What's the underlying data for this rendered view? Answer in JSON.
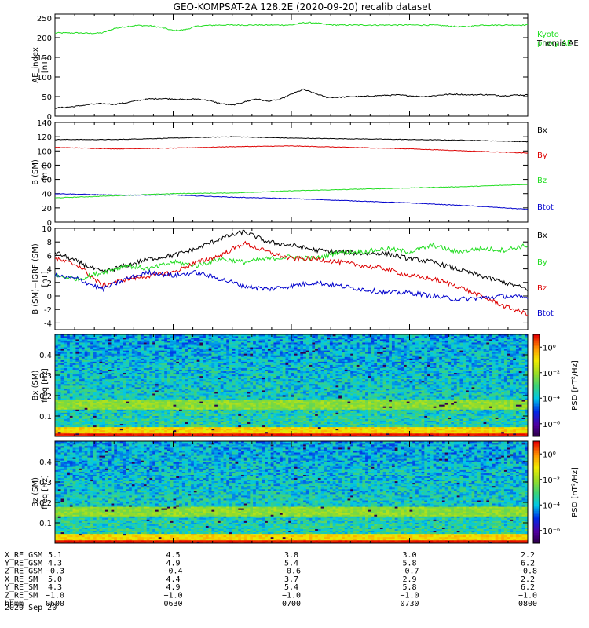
{
  "title": "GEO-KOMPSAT-2A 128.2E (2020-09-20) recalib dataset",
  "colors": {
    "black": "#000000",
    "blue": "#0000cc",
    "green": "#22dd22",
    "red": "#dd0000"
  },
  "chart_data": [
    {
      "type": "line",
      "ylabel": "AE_index\n[nT]",
      "ylim": [
        0,
        260
      ],
      "yticks": [
        "0",
        "50",
        "100",
        "150",
        "200",
        "250"
      ],
      "ytick_values": [
        0,
        50,
        100,
        150,
        200,
        250
      ],
      "x_hours": [
        0,
        0.05,
        0.1,
        0.15,
        0.2,
        0.25,
        0.3,
        0.35,
        0.4,
        0.45,
        0.5,
        0.55,
        0.6,
        0.65,
        0.7,
        0.75,
        0.8,
        0.85,
        0.9,
        0.95,
        1.0,
        1.05,
        1.1,
        1.15,
        1.2,
        1.25,
        1.3,
        1.35,
        1.4,
        1.45,
        1.5,
        1.55,
        1.6,
        1.65,
        1.7,
        1.75,
        1.8,
        1.85,
        1.9,
        1.95,
        2.0
      ],
      "series": [
        {
          "name": "Kyoto\nproxy AE",
          "color": "green",
          "values": [
            212,
            212,
            212,
            211,
            212,
            223,
            228,
            231,
            230,
            226,
            218,
            220,
            229,
            231,
            232,
            232,
            232,
            232,
            232,
            232,
            232,
            238,
            238,
            233,
            232,
            232,
            232,
            232,
            232,
            232,
            232,
            232,
            232,
            230,
            228,
            228,
            232,
            232,
            232,
            232,
            232
          ]
        },
        {
          "name": "Themis AE",
          "color": "black",
          "values": [
            21,
            23,
            26,
            30,
            32,
            30,
            34,
            40,
            44,
            45,
            44,
            42,
            44,
            40,
            32,
            28,
            36,
            44,
            38,
            42,
            56,
            68,
            58,
            48,
            48,
            50,
            50,
            52,
            53,
            54,
            52,
            50,
            52,
            55,
            56,
            54,
            55,
            54,
            52,
            54,
            54
          ]
        }
      ]
    },
    {
      "type": "line",
      "ylabel": "B (SM)\n[nT]",
      "ylim": [
        0,
        140
      ],
      "yticks": [
        "0",
        "20",
        "40",
        "60",
        "80",
        "100",
        "120",
        "140"
      ],
      "ytick_values": [
        0,
        20,
        40,
        60,
        80,
        100,
        120,
        140
      ],
      "x_hours": [
        0,
        0.25,
        0.5,
        0.75,
        1.0,
        1.25,
        1.5,
        1.75,
        2.0
      ],
      "series": [
        {
          "name": "Bx",
          "color": "black",
          "values": [
            116,
            116,
            118,
            120,
            118,
            117,
            116,
            115,
            113
          ]
        },
        {
          "name": "By",
          "color": "red",
          "values": [
            105,
            103,
            104,
            106,
            107,
            105,
            103,
            100,
            97
          ]
        },
        {
          "name": "Bz",
          "color": "green",
          "values": [
            34,
            37,
            40,
            41,
            44,
            46,
            48,
            50,
            53
          ]
        },
        {
          "name": "Btot",
          "color": "blue",
          "values": [
            40,
            38,
            38,
            35,
            33,
            30,
            27,
            23,
            18
          ]
        }
      ]
    },
    {
      "type": "line",
      "ylabel": "B (SM)−IGRF (SM)\n[nT]",
      "ylim": [
        -5,
        10
      ],
      "yticks": [
        "-4",
        "-2",
        "0",
        "2",
        "4",
        "6",
        "8",
        "10"
      ],
      "ytick_values": [
        -4,
        -2,
        0,
        2,
        4,
        6,
        8,
        10
      ],
      "x_hours": [
        0,
        0.1,
        0.2,
        0.3,
        0.4,
        0.5,
        0.6,
        0.7,
        0.8,
        0.9,
        1.0,
        1.1,
        1.2,
        1.3,
        1.4,
        1.5,
        1.6,
        1.7,
        1.8,
        1.9,
        2.0
      ],
      "series": [
        {
          "name": "Bx",
          "color": "black",
          "values": [
            6.5,
            5.0,
            3.5,
            4.5,
            5.5,
            6.0,
            7.0,
            8.5,
            9.5,
            8.0,
            7.5,
            6.8,
            6.5,
            6.3,
            6.3,
            5.5,
            5.0,
            4.0,
            3.0,
            2.0,
            1.0
          ]
        },
        {
          "name": "By",
          "color": "green",
          "values": [
            3.0,
            2.5,
            3.5,
            4.5,
            4.0,
            5.0,
            4.5,
            5.5,
            5.0,
            5.5,
            5.8,
            5.5,
            6.5,
            6.5,
            7.0,
            6.5,
            7.5,
            6.5,
            7.0,
            6.8,
            7.5
          ]
        },
        {
          "name": "Bz",
          "color": "red",
          "values": [
            5.5,
            4.5,
            1.5,
            2.5,
            3.0,
            3.5,
            5.0,
            6.0,
            7.8,
            6.5,
            5.5,
            5.5,
            5.0,
            4.5,
            4.0,
            3.0,
            2.5,
            1.5,
            0.0,
            -1.5,
            -2.7
          ]
        },
        {
          "name": "Btot",
          "color": "blue",
          "values": [
            3.0,
            2.5,
            1.0,
            2.5,
            3.5,
            3.0,
            3.5,
            2.5,
            1.5,
            1.0,
            1.5,
            2.0,
            1.5,
            1.0,
            0.5,
            0.5,
            0.0,
            -0.5,
            -0.3,
            0.0,
            -0.3
          ]
        }
      ]
    },
    {
      "type": "heatmap",
      "ylabel": "Bx (SM)\nfreq [Hz]",
      "ylim": [
        0,
        0.5
      ],
      "yticks": [
        "0.1",
        "0.2",
        "0.3",
        "0.4"
      ],
      "ytick_values": [
        0.1,
        0.2,
        0.3,
        0.4
      ],
      "colorbar_label": "PSD [nT²/Hz]",
      "colorbar_ticks": [
        "10⁰",
        "10⁻²",
        "10⁻⁴",
        "10⁻⁶"
      ],
      "colorbar_tick_exponents": [
        0,
        -2,
        -4,
        -6
      ],
      "colorbar_range_exponents": [
        -7,
        1
      ]
    },
    {
      "type": "heatmap",
      "ylabel": "Bz (SM)\nfreq [Hz]",
      "ylim": [
        0,
        0.5
      ],
      "yticks": [
        "0.1",
        "0.2",
        "0.3",
        "0.4"
      ],
      "ytick_values": [
        0.1,
        0.2,
        0.3,
        0.4
      ],
      "colorbar_label": "PSD [nT²/Hz]",
      "colorbar_ticks": [
        "10⁰",
        "10⁻²",
        "10⁻⁴",
        "10⁻⁶"
      ],
      "colorbar_tick_exponents": [
        0,
        -2,
        -4,
        -6
      ],
      "colorbar_range_exponents": [
        -7,
        1
      ]
    }
  ],
  "ephemeris": {
    "labels": [
      "X_RE_GSM",
      "Y_RE_GSM",
      "Z_RE_GSM",
      "X_RE_SM",
      "Y_RE_SM",
      "Z_RE_SM",
      "hhmm"
    ],
    "x_hours": [
      0,
      0.5,
      1.0,
      1.5,
      2.0
    ],
    "rows": [
      [
        "5.1",
        "4.5",
        "3.8",
        "3.0",
        "2.2"
      ],
      [
        "4.3",
        "4.9",
        "5.4",
        "5.8",
        "6.2"
      ],
      [
        "−0.3",
        "−0.4",
        "−0.6",
        "−0.7",
        "−0.8"
      ],
      [
        "5.0",
        "4.4",
        "3.7",
        "2.9",
        "2.2"
      ],
      [
        "4.3",
        "4.9",
        "5.4",
        "5.8",
        "6.2"
      ],
      [
        "−1.0",
        "−1.0",
        "−1.0",
        "−1.0",
        "−1.0"
      ],
      [
        "0600",
        "0630",
        "0700",
        "0730",
        "0800"
      ]
    ],
    "date": "2020 Sep 20"
  }
}
